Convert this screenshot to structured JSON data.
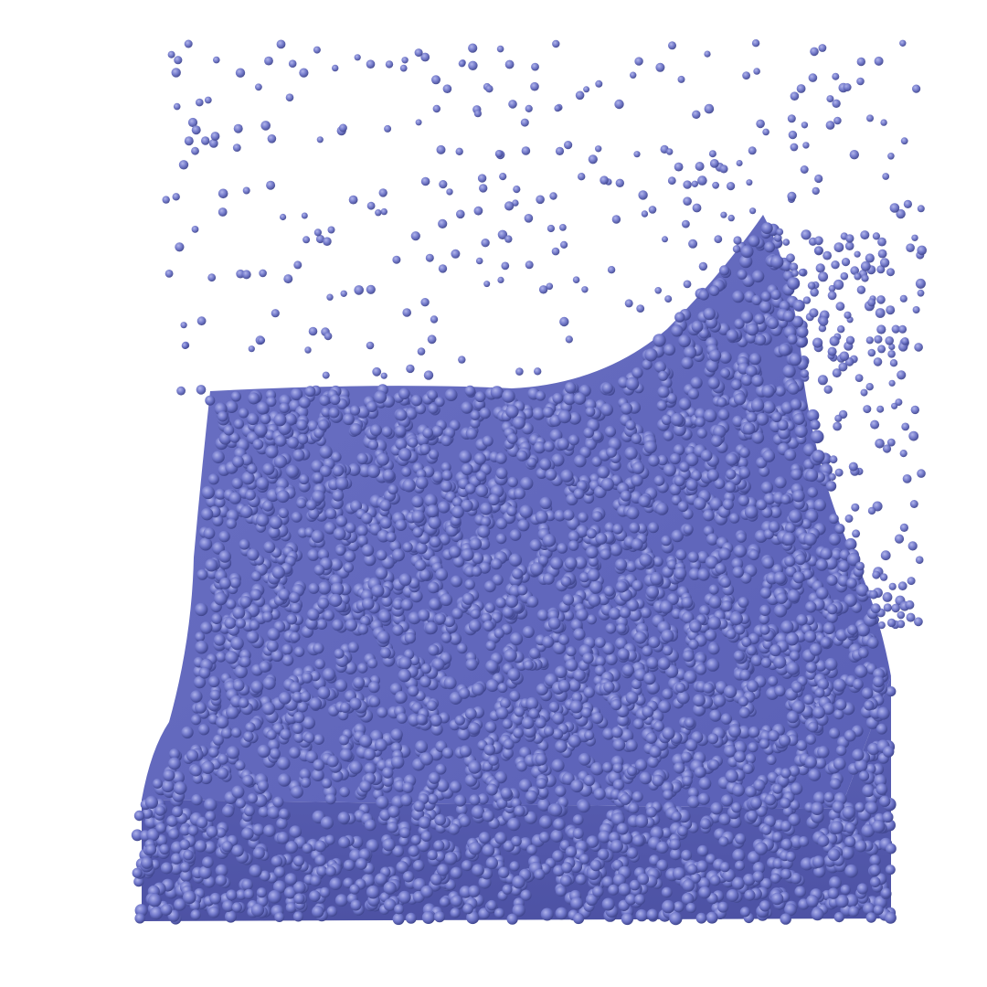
{
  "scene": {
    "subject": "particle-fluid-simulation",
    "particle_color": "#6e75c9",
    "particle_shadow_color": "#3c4196",
    "particle_highlight_color": "#a4a9e6",
    "background_color": "#ffffff"
  }
}
